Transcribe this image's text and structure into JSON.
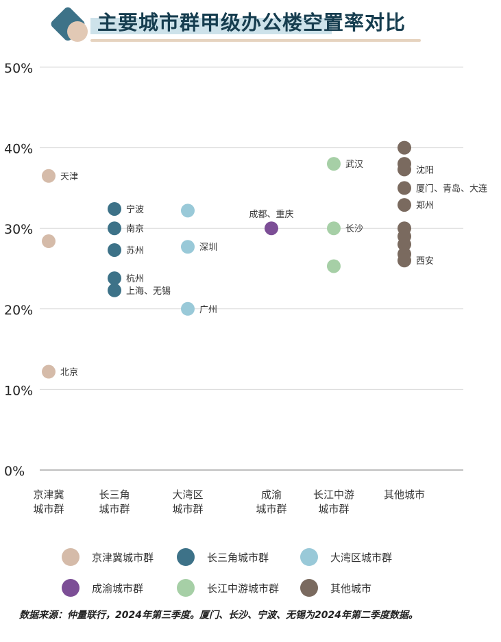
{
  "header": {
    "title": "主要城市群甲级办公楼空置率对比"
  },
  "colors": {
    "京津冀": "#d5bba9",
    "长三角": "#3d7288",
    "大湾区": "#99c9d8",
    "成渝": "#7c4e96",
    "长江中游": "#a6cfa6",
    "其他城市": "#7a6a5f",
    "grid": "#d9d9d9",
    "axis": "#999999"
  },
  "chart_data": {
    "type": "scatter",
    "categories": [
      "京津冀城市群",
      "长三角城市群",
      "大湾区城市群",
      "成渝城市群",
      "长江中游城市群",
      "其他城市"
    ],
    "category_tick_lines": [
      [
        "京津冀",
        "城市群"
      ],
      [
        "长三角",
        "城市群"
      ],
      [
        "大湾区",
        "城市群"
      ],
      [
        "成渝",
        "城市群"
      ],
      [
        "长江中游",
        "城市群"
      ],
      [
        "其他城市"
      ]
    ],
    "ylim": [
      0,
      50
    ],
    "yticks": [
      "0%",
      "10%",
      "20%",
      "30%",
      "40%",
      "50%"
    ],
    "grid": true,
    "legend_position": "bottom",
    "series": [
      {
        "name": "京津冀城市群",
        "color_key": "京津冀",
        "points": [
          {
            "value": 36.5,
            "label": "天津"
          },
          {
            "value": 28.4,
            "label": ""
          },
          {
            "value": 12.2,
            "label": "北京"
          }
        ]
      },
      {
        "name": "长三角城市群",
        "color_key": "长三角",
        "points": [
          {
            "value": 32.4,
            "label": "宁波"
          },
          {
            "value": 30.0,
            "label": "南京"
          },
          {
            "value": 27.3,
            "label": "苏州"
          },
          {
            "value": 23.8,
            "label": "杭州"
          },
          {
            "value": 22.3,
            "label": "上海、无锡"
          }
        ]
      },
      {
        "name": "大湾区城市群",
        "color_key": "大湾区",
        "points": [
          {
            "value": 32.2,
            "label": ""
          },
          {
            "value": 27.7,
            "label": "深圳"
          },
          {
            "value": 20.0,
            "label": "广州"
          }
        ]
      },
      {
        "name": "成渝城市群",
        "color_key": "成渝",
        "points": [
          {
            "value": 30.0,
            "label": "成都、重庆",
            "label_above": true
          }
        ]
      },
      {
        "name": "长江中游城市群",
        "color_key": "长江中游",
        "points": [
          {
            "value": 38.0,
            "label": "武汉"
          },
          {
            "value": 30.0,
            "label": "长沙"
          },
          {
            "value": 25.3,
            "label": ""
          }
        ]
      },
      {
        "name": "其他城市",
        "color_key": "其他城市",
        "points": [
          {
            "value": 40.0,
            "label": ""
          },
          {
            "value": 38.0,
            "label": ""
          },
          {
            "value": 37.3,
            "label": "沈阳"
          },
          {
            "value": 35.0,
            "label": "厦门、青岛、大连"
          },
          {
            "value": 32.9,
            "label": "郑州"
          },
          {
            "value": 30.0,
            "label": ""
          },
          {
            "value": 29.0,
            "label": ""
          },
          {
            "value": 28.0,
            "label": ""
          },
          {
            "value": 26.8,
            "label": ""
          },
          {
            "value": 26.0,
            "label": "西安"
          }
        ]
      }
    ]
  },
  "legend": {
    "items": [
      {
        "label": "京津冀城市群",
        "color_key": "京津冀"
      },
      {
        "label": "长三角城市群",
        "color_key": "长三角"
      },
      {
        "label": "大湾区城市群",
        "color_key": "大湾区"
      },
      {
        "label": "成渝城市群",
        "color_key": "成渝"
      },
      {
        "label": "长江中游城市群",
        "color_key": "长江中游"
      },
      {
        "label": "其他城市",
        "color_key": "其他城市"
      }
    ]
  },
  "footer": {
    "source_note": "数据来源：仲量联行，2024年第三季度。厦门、长沙、宁波、无锡为2024年第二季度数据。"
  }
}
